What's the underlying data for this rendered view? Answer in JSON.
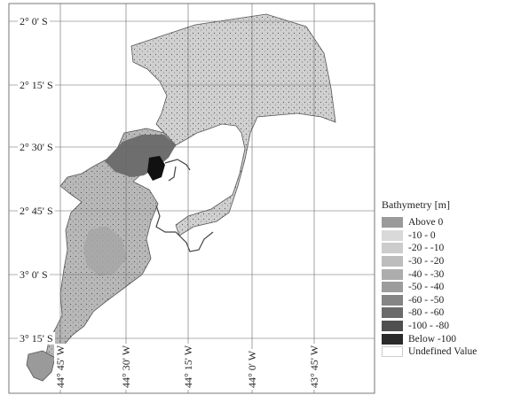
{
  "map": {
    "lat_labels": [
      "2° 0' S",
      "2° 15' S",
      "2° 30' S",
      "2° 45' S",
      "3° 0' S",
      "3° 15' S"
    ],
    "lon_labels": [
      "44° 45' W",
      "44° 30' W",
      "44° 15' W",
      "44° 0' W",
      "43° 45' W"
    ]
  },
  "legend": {
    "title": "Bathymetry [m]",
    "items": [
      {
        "label": "Above    0",
        "color": "#9a9a9a"
      },
      {
        "label": "-10 -    0",
        "color": "#d9d9d9"
      },
      {
        "label": "-20 -  -10",
        "color": "#cccccc"
      },
      {
        "label": "-30 -  -20",
        "color": "#bdbdbd"
      },
      {
        "label": "-40 -  -30",
        "color": "#adadad"
      },
      {
        "label": "-50 -  -40",
        "color": "#9c9c9c"
      },
      {
        "label": "-60 -  -50",
        "color": "#858585"
      },
      {
        "label": "-80 -  -60",
        "color": "#6b6b6b"
      },
      {
        "label": "-100 -  -80",
        "color": "#4f4f4f"
      },
      {
        "label": "Below -100",
        "color": "#2a2a2a"
      },
      {
        "label": "Undefined Value",
        "color": "#ffffff"
      }
    ]
  }
}
